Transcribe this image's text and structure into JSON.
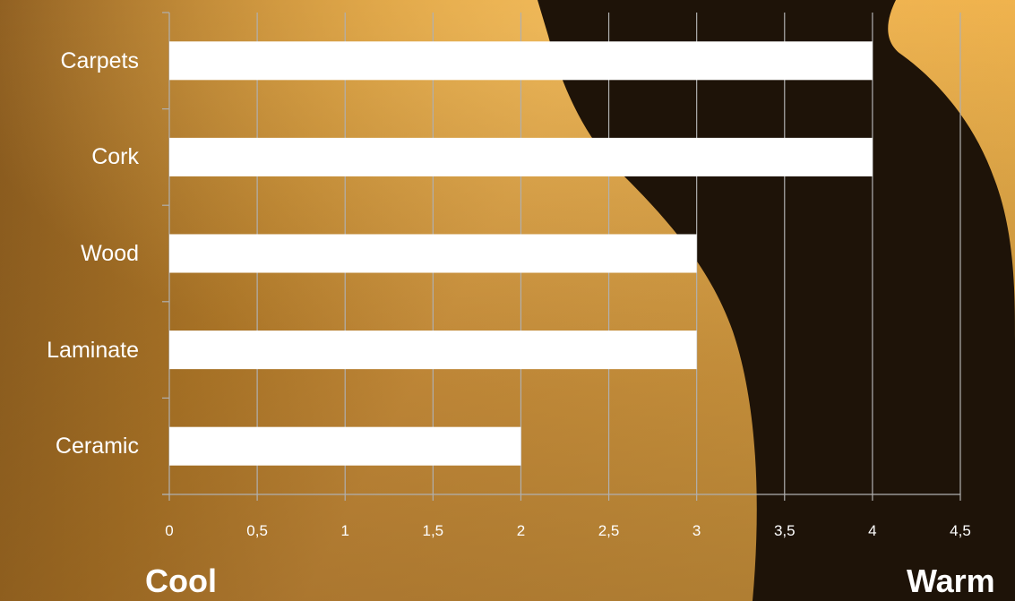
{
  "chart_data": {
    "type": "bar",
    "orientation": "horizontal",
    "categories": [
      "Carpets",
      "Cork",
      "Wood",
      "Laminate",
      "Ceramic"
    ],
    "values": [
      4,
      4,
      3,
      3,
      2
    ],
    "xlim": [
      0,
      4.5
    ],
    "x_ticks": [
      "0",
      "0,5",
      "1",
      "1,5",
      "2",
      "2,5",
      "3",
      "3,5",
      "4",
      "4,5"
    ],
    "xlabel_left": "Cool",
    "xlabel_right": "Warm",
    "grid": true,
    "legend": false,
    "bar_color": "#ffffff",
    "grid_color": "#b0b0b0"
  }
}
